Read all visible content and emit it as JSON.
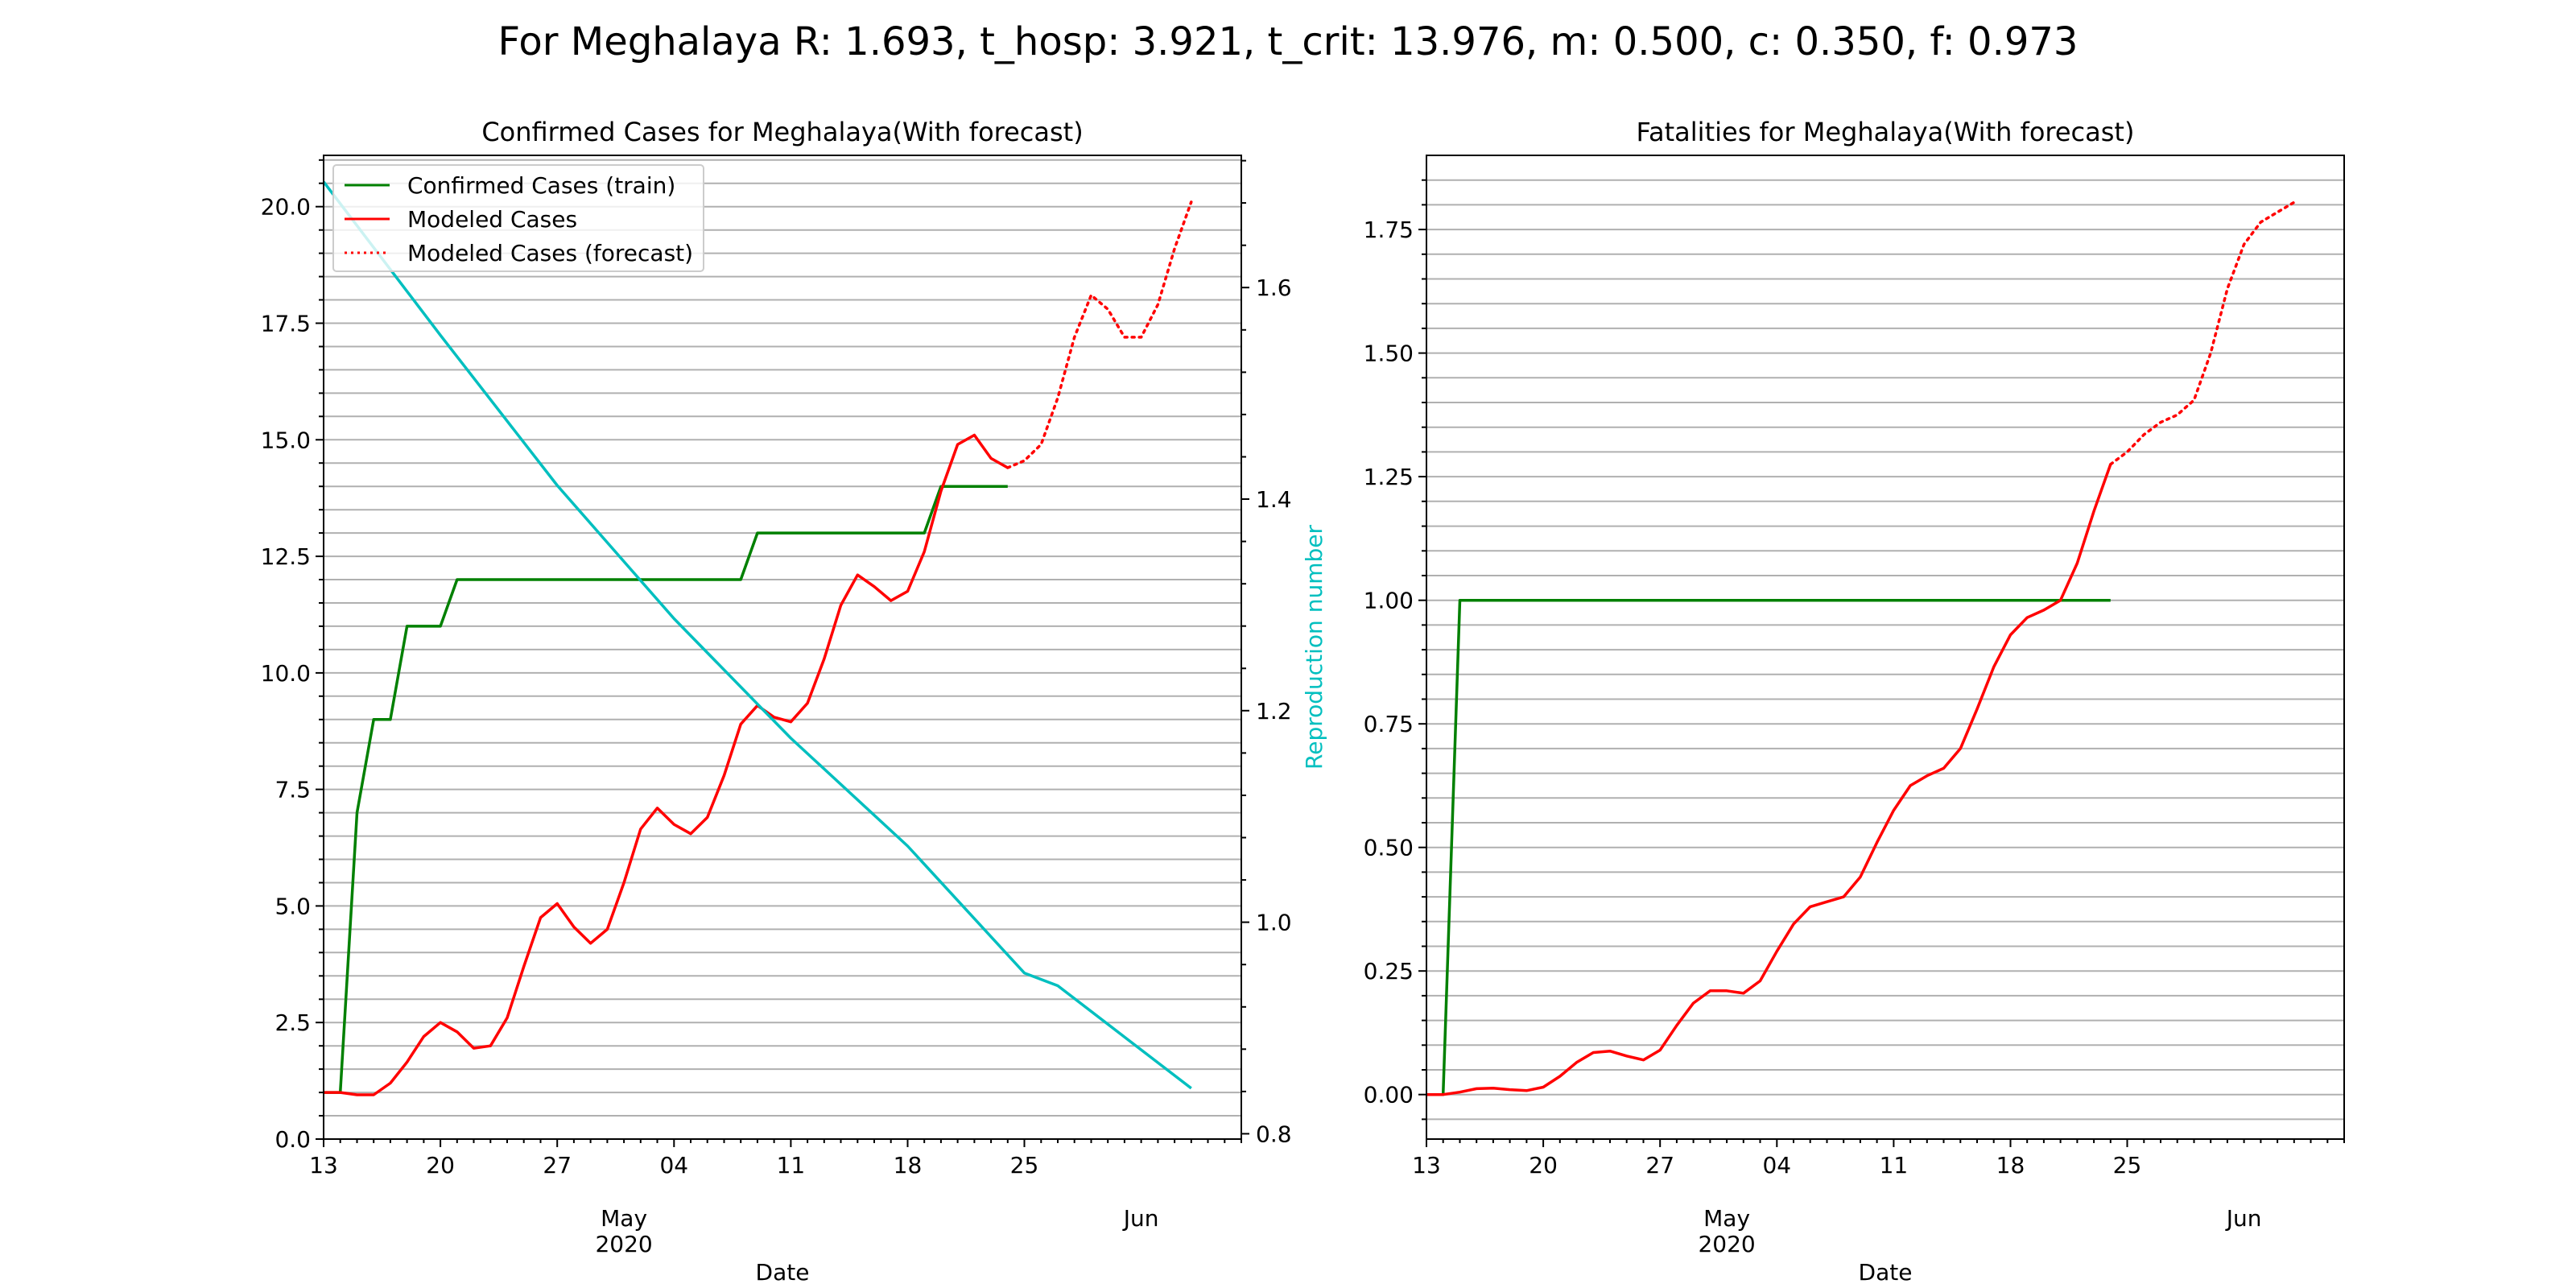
{
  "figure": {
    "suptitle": "For Meghalaya R: 1.693, t_hosp: 3.921, t_crit: 13.976, m: 0.500, c: 0.350, f: 0.973"
  },
  "colors": {
    "train": "#008000",
    "modeled": "#ff0000",
    "reproduction": "#00bfbf",
    "grid": "#b0b0b0",
    "axis": "#000000"
  },
  "chart_data": [
    {
      "type": "line",
      "title": "Confirmed Cases for Meghalaya(With forecast)",
      "xlabel": "Date",
      "ylabel": "",
      "y2label": "Reproduction number",
      "x_start": "2020-04-13",
      "x_end": "2020-06-07",
      "xticks_major": [
        "13",
        "20",
        "27",
        "04",
        "11",
        "18",
        "25"
      ],
      "xticks_month": [
        "May",
        "Jun"
      ],
      "x_year": "2020",
      "ylim": [
        0,
        21.1
      ],
      "yticks": [
        "0.0",
        "2.5",
        "5.0",
        "7.5",
        "10.0",
        "12.5",
        "15.0",
        "17.5",
        "20.0"
      ],
      "y2lim": [
        0.795,
        1.725
      ],
      "y2ticks": [
        "0.8",
        "1.0",
        "1.2",
        "1.4",
        "1.6"
      ],
      "grid": "horizontal major and minor",
      "legend": {
        "position": "upper-left",
        "entries": [
          "Confirmed Cases (train)",
          "Modeled Cases",
          "Modeled Cases (forecast)"
        ]
      },
      "series": [
        {
          "name": "Confirmed Cases (train)",
          "style": "solid",
          "color": "#008000",
          "axis": "left",
          "points": [
            [
              "2020-04-13",
              1
            ],
            [
              "2020-04-14",
              1
            ],
            [
              "2020-04-15",
              7
            ],
            [
              "2020-04-16",
              9
            ],
            [
              "2020-04-17",
              9
            ],
            [
              "2020-04-18",
              11
            ],
            [
              "2020-04-19",
              11
            ],
            [
              "2020-04-20",
              11
            ],
            [
              "2020-04-21",
              12
            ],
            [
              "2020-04-22",
              12
            ],
            [
              "2020-04-23",
              12
            ],
            [
              "2020-04-24",
              12
            ],
            [
              "2020-04-25",
              12
            ],
            [
              "2020-04-26",
              12
            ],
            [
              "2020-04-27",
              12
            ],
            [
              "2020-04-28",
              12
            ],
            [
              "2020-04-29",
              12
            ],
            [
              "2020-04-30",
              12
            ],
            [
              "2020-05-01",
              12
            ],
            [
              "2020-05-02",
              12
            ],
            [
              "2020-05-03",
              12
            ],
            [
              "2020-05-04",
              12
            ],
            [
              "2020-05-05",
              12
            ],
            [
              "2020-05-06",
              12
            ],
            [
              "2020-05-07",
              12
            ],
            [
              "2020-05-08",
              12
            ],
            [
              "2020-05-09",
              13
            ],
            [
              "2020-05-10",
              13
            ],
            [
              "2020-05-11",
              13
            ],
            [
              "2020-05-12",
              13
            ],
            [
              "2020-05-13",
              13
            ],
            [
              "2020-05-14",
              13
            ],
            [
              "2020-05-15",
              13
            ],
            [
              "2020-05-16",
              13
            ],
            [
              "2020-05-17",
              13
            ],
            [
              "2020-05-18",
              13
            ],
            [
              "2020-05-19",
              13
            ],
            [
              "2020-05-20",
              14
            ],
            [
              "2020-05-21",
              14
            ],
            [
              "2020-05-22",
              14
            ],
            [
              "2020-05-23",
              14
            ],
            [
              "2020-05-24",
              14
            ]
          ]
        },
        {
          "name": "Modeled Cases",
          "style": "solid",
          "color": "#ff0000",
          "axis": "left",
          "points": [
            [
              "2020-04-13",
              1.0
            ],
            [
              "2020-04-14",
              1.0
            ],
            [
              "2020-04-15",
              0.95
            ],
            [
              "2020-04-16",
              0.95
            ],
            [
              "2020-04-17",
              1.2
            ],
            [
              "2020-04-18",
              1.65
            ],
            [
              "2020-04-19",
              2.2
            ],
            [
              "2020-04-20",
              2.5
            ],
            [
              "2020-04-21",
              2.3
            ],
            [
              "2020-04-22",
              1.95
            ],
            [
              "2020-04-23",
              2.0
            ],
            [
              "2020-04-24",
              2.6
            ],
            [
              "2020-04-25",
              3.7
            ],
            [
              "2020-04-26",
              4.75
            ],
            [
              "2020-04-27",
              5.05
            ],
            [
              "2020-04-28",
              4.55
            ],
            [
              "2020-04-29",
              4.2
            ],
            [
              "2020-04-30",
              4.5
            ],
            [
              "2020-05-01",
              5.5
            ],
            [
              "2020-05-02",
              6.65
            ],
            [
              "2020-05-03",
              7.1
            ],
            [
              "2020-05-04",
              6.75
            ],
            [
              "2020-05-05",
              6.55
            ],
            [
              "2020-05-06",
              6.9
            ],
            [
              "2020-05-07",
              7.8
            ],
            [
              "2020-05-08",
              8.9
            ],
            [
              "2020-05-09",
              9.3
            ],
            [
              "2020-05-10",
              9.05
            ],
            [
              "2020-05-11",
              8.95
            ],
            [
              "2020-05-12",
              9.35
            ],
            [
              "2020-05-13",
              10.3
            ],
            [
              "2020-05-14",
              11.45
            ],
            [
              "2020-05-15",
              12.1
            ],
            [
              "2020-05-16",
              11.85
            ],
            [
              "2020-05-17",
              11.55
            ],
            [
              "2020-05-18",
              11.75
            ],
            [
              "2020-05-19",
              12.6
            ],
            [
              "2020-05-20",
              13.9
            ],
            [
              "2020-05-21",
              14.9
            ],
            [
              "2020-05-22",
              15.1
            ],
            [
              "2020-05-23",
              14.6
            ],
            [
              "2020-05-24",
              14.4
            ]
          ]
        },
        {
          "name": "Modeled Cases (forecast)",
          "style": "dotted",
          "color": "#ff0000",
          "axis": "left",
          "points": [
            [
              "2020-05-24",
              14.4
            ],
            [
              "2020-05-25",
              14.55
            ],
            [
              "2020-05-26",
              14.9
            ],
            [
              "2020-05-27",
              15.9
            ],
            [
              "2020-05-28",
              17.2
            ],
            [
              "2020-05-29",
              18.1
            ],
            [
              "2020-05-30",
              17.8
            ],
            [
              "2020-05-31",
              17.2
            ],
            [
              "2020-06-01",
              17.2
            ],
            [
              "2020-06-02",
              17.9
            ],
            [
              "2020-06-03",
              19.1
            ],
            [
              "2020-06-04",
              20.1
            ]
          ]
        },
        {
          "name": "",
          "style": "solid",
          "color": "#00bfbf",
          "axis": "right",
          "points": [
            [
              "2020-04-13",
              1.7
            ],
            [
              "2020-04-20",
              1.555
            ],
            [
              "2020-04-27",
              1.413
            ],
            [
              "2020-05-04",
              1.287
            ],
            [
              "2020-05-11",
              1.174
            ],
            [
              "2020-05-18",
              1.072
            ],
            [
              "2020-05-25",
              0.952
            ],
            [
              "2020-05-27",
              0.94
            ],
            [
              "2020-06-04",
              0.843
            ]
          ]
        }
      ]
    },
    {
      "type": "line",
      "title": "Fatalities for Meghalaya(With forecast)",
      "xlabel": "Date",
      "ylabel": "",
      "x_start": "2020-04-13",
      "x_end": "2020-06-07",
      "xticks_major": [
        "13",
        "20",
        "27",
        "04",
        "11",
        "18",
        "25"
      ],
      "xticks_month": [
        "May",
        "Jun"
      ],
      "x_year": "2020",
      "ylim": [
        -0.09,
        1.9
      ],
      "yticks": [
        "0.00",
        "0.25",
        "0.50",
        "0.75",
        "1.00",
        "1.25",
        "1.50",
        "1.75"
      ],
      "grid": "horizontal major and minor",
      "series": [
        {
          "name": "",
          "style": "solid",
          "color": "#008000",
          "points": [
            [
              "2020-04-13",
              0
            ],
            [
              "2020-04-14",
              0
            ],
            [
              "2020-04-15",
              1
            ],
            [
              "2020-04-16",
              1
            ],
            [
              "2020-04-20",
              1
            ],
            [
              "2020-04-30",
              1
            ],
            [
              "2020-05-10",
              1
            ],
            [
              "2020-05-20",
              1
            ],
            [
              "2020-05-24",
              1
            ]
          ]
        },
        {
          "name": "",
          "style": "solid",
          "color": "#ff0000",
          "points": [
            [
              "2020-04-13",
              0.0
            ],
            [
              "2020-04-14",
              0.0
            ],
            [
              "2020-04-15",
              0.005
            ],
            [
              "2020-04-16",
              0.012
            ],
            [
              "2020-04-17",
              0.013
            ],
            [
              "2020-04-18",
              0.01
            ],
            [
              "2020-04-19",
              0.008
            ],
            [
              "2020-04-20",
              0.015
            ],
            [
              "2020-04-21",
              0.037
            ],
            [
              "2020-04-22",
              0.065
            ],
            [
              "2020-04-23",
              0.085
            ],
            [
              "2020-04-24",
              0.088
            ],
            [
              "2020-04-25",
              0.078
            ],
            [
              "2020-04-26",
              0.07
            ],
            [
              "2020-04-27",
              0.09
            ],
            [
              "2020-04-28",
              0.14
            ],
            [
              "2020-04-29",
              0.185
            ],
            [
              "2020-04-30",
              0.21
            ],
            [
              "2020-05-01",
              0.21
            ],
            [
              "2020-05-02",
              0.205
            ],
            [
              "2020-05-03",
              0.23
            ],
            [
              "2020-05-04",
              0.29
            ],
            [
              "2020-05-05",
              0.345
            ],
            [
              "2020-05-06",
              0.38
            ],
            [
              "2020-05-07",
              0.39
            ],
            [
              "2020-05-08",
              0.4
            ],
            [
              "2020-05-09",
              0.44
            ],
            [
              "2020-05-10",
              0.51
            ],
            [
              "2020-05-11",
              0.575
            ],
            [
              "2020-05-12",
              0.625
            ],
            [
              "2020-05-13",
              0.645
            ],
            [
              "2020-05-14",
              0.66
            ],
            [
              "2020-05-15",
              0.7
            ],
            [
              "2020-05-16",
              0.78
            ],
            [
              "2020-05-17",
              0.865
            ],
            [
              "2020-05-18",
              0.93
            ],
            [
              "2020-05-19",
              0.965
            ],
            [
              "2020-05-20",
              0.98
            ],
            [
              "2020-05-21",
              1.0
            ],
            [
              "2020-05-22",
              1.075
            ],
            [
              "2020-05-23",
              1.18
            ],
            [
              "2020-05-24",
              1.275
            ]
          ]
        },
        {
          "name": "",
          "style": "dotted",
          "color": "#ff0000",
          "points": [
            [
              "2020-05-24",
              1.275
            ],
            [
              "2020-05-25",
              1.3
            ],
            [
              "2020-05-26",
              1.335
            ],
            [
              "2020-05-27",
              1.36
            ],
            [
              "2020-05-28",
              1.375
            ],
            [
              "2020-05-29",
              1.405
            ],
            [
              "2020-05-30",
              1.5
            ],
            [
              "2020-05-31",
              1.63
            ],
            [
              "2020-06-01",
              1.72
            ],
            [
              "2020-06-02",
              1.765
            ],
            [
              "2020-06-03",
              1.785
            ],
            [
              "2020-06-04",
              1.805
            ]
          ]
        }
      ]
    }
  ]
}
